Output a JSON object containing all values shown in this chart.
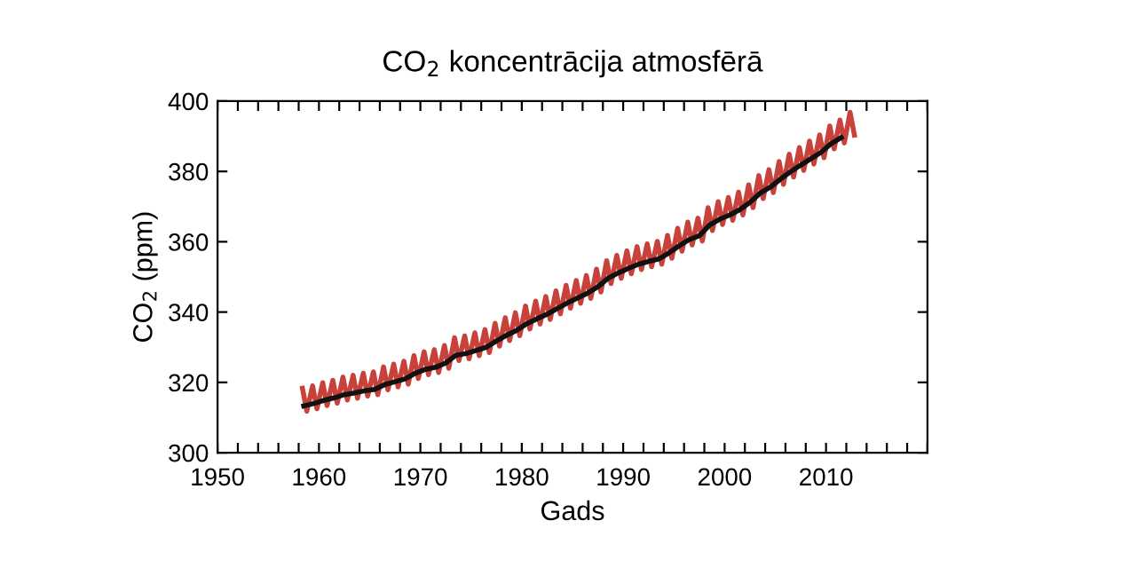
{
  "chart_data": {
    "type": "line",
    "title": "CO$_{2}$ koncentrācija atmosfērā",
    "xlabel": "Gads",
    "ylabel": "CO$_{2}$ (ppm)",
    "xlim": [
      1950,
      2020
    ],
    "ylim": [
      300,
      400
    ],
    "xticks": [
      1950,
      {
        "value": 1952,
        "label": null
      },
      {
        "value": 1954,
        "label": null
      },
      {
        "value": 1956,
        "label": null
      },
      {
        "value": 1958,
        "label": null
      },
      1960,
      {
        "value": 1962,
        "label": null
      },
      {
        "value": 1964,
        "label": null
      },
      {
        "value": 1966,
        "label": null
      },
      {
        "value": 1968,
        "label": null
      },
      1970,
      {
        "value": 1972,
        "label": null
      },
      {
        "value": 1974,
        "label": null
      },
      {
        "value": 1976,
        "label": null
      },
      {
        "value": 1978,
        "label": null
      },
      1980,
      {
        "value": 1982,
        "label": null
      },
      {
        "value": 1984,
        "label": null
      },
      {
        "value": 1986,
        "label": null
      },
      {
        "value": 1988,
        "label": null
      },
      1990,
      {
        "value": 1992,
        "label": null
      },
      {
        "value": 1994,
        "label": null
      },
      {
        "value": 1996,
        "label": null
      },
      {
        "value": 1998,
        "label": null
      },
      2000,
      {
        "value": 2002,
        "label": null
      },
      {
        "value": 2004,
        "label": null
      },
      {
        "value": 2006,
        "label": null
      },
      {
        "value": 2008,
        "label": null
      },
      2010,
      {
        "value": 2012,
        "label": null
      },
      {
        "value": 2014,
        "label": null
      },
      {
        "value": 2016,
        "label": null
      },
      {
        "value": 2018,
        "label": null
      },
      {
        "value": 2020,
        "label": null
      }
    ],
    "yticks": [
      300,
      320,
      340,
      360,
      380,
      400
    ],
    "grid": false,
    "marker": "none",
    "line_style": "solid",
    "series": [
      {
        "color": "#c8413a",
        "x": [
          1958.37,
          1958.8,
          1959.37,
          1959.8,
          1960.37,
          1960.8,
          1961.37,
          1961.8,
          1962.37,
          1962.8,
          1963.37,
          1963.8,
          1964.37,
          1964.8,
          1965.37,
          1965.8,
          1966.37,
          1966.8,
          1967.37,
          1967.8,
          1968.37,
          1968.8,
          1969.37,
          1969.8,
          1970.37,
          1970.8,
          1971.37,
          1971.8,
          1972.37,
          1972.8,
          1973.37,
          1973.8,
          1974.37,
          1974.8,
          1975.37,
          1975.8,
          1976.37,
          1976.8,
          1977.37,
          1977.8,
          1978.37,
          1978.8,
          1979.37,
          1979.8,
          1980.37,
          1980.8,
          1981.37,
          1981.8,
          1982.37,
          1982.8,
          1983.37,
          1983.8,
          1984.37,
          1984.8,
          1985.37,
          1985.8,
          1986.37,
          1986.8,
          1987.37,
          1987.8,
          1988.37,
          1988.8,
          1989.37,
          1989.8,
          1990.37,
          1990.8,
          1991.37,
          1991.8,
          1992.37,
          1992.8,
          1993.37,
          1993.8,
          1994.37,
          1994.8,
          1995.37,
          1995.8,
          1996.37,
          1996.8,
          1997.37,
          1997.8,
          1998.37,
          1998.8,
          1999.37,
          1999.8,
          2000.37,
          2000.8,
          2001.37,
          2001.8,
          2002.37,
          2002.8,
          2003.37,
          2003.8,
          2004.37,
          2004.8,
          2005.37,
          2005.8,
          2006.37,
          2006.8,
          2007.37,
          2007.8,
          2008.37,
          2008.8,
          2009.37,
          2009.8,
          2010.37,
          2010.8,
          2011.37,
          2011.8,
          2012.37,
          2012.8
        ],
        "values": [
          318.3,
          311.8,
          319.0,
          312.5,
          319.9,
          313.4,
          320.6,
          314.1,
          321.5,
          315.0,
          322.0,
          315.5,
          322.6,
          316.1,
          323.0,
          316.5,
          324.4,
          317.9,
          325.2,
          318.7,
          326.0,
          319.5,
          327.6,
          321.1,
          328.7,
          322.2,
          329.3,
          322.8,
          330.5,
          324.0,
          332.7,
          326.2,
          333.2,
          326.7,
          334.1,
          327.6,
          335.0,
          328.5,
          336.8,
          330.3,
          338.4,
          331.9,
          339.8,
          333.3,
          341.7,
          335.2,
          343.1,
          336.6,
          344.4,
          337.9,
          346.0,
          339.5,
          347.6,
          341.1,
          349.0,
          342.5,
          350.4,
          343.9,
          352.2,
          345.7,
          354.6,
          348.1,
          356.1,
          349.6,
          357.4,
          350.9,
          358.6,
          352.1,
          359.4,
          352.9,
          360.1,
          353.6,
          361.8,
          355.3,
          363.8,
          357.3,
          365.6,
          359.1,
          366.7,
          360.2,
          369.7,
          363.2,
          371.4,
          364.9,
          372.6,
          366.1,
          374.1,
          367.6,
          376.2,
          369.7,
          378.8,
          372.3,
          380.5,
          374.0,
          382.8,
          376.3,
          384.9,
          378.4,
          386.8,
          380.3,
          388.6,
          382.1,
          390.4,
          383.9,
          392.9,
          386.4,
          394.6,
          388.1,
          396.8,
          390.3
        ]
      },
      {
        "color": "#111111",
        "x": [
          1958.5,
          1959.5,
          1960.5,
          1961.5,
          1962.5,
          1963.5,
          1964.5,
          1965.5,
          1966.5,
          1967.5,
          1968.5,
          1969.5,
          1970.5,
          1971.5,
          1972.5,
          1973.5,
          1974.5,
          1975.5,
          1976.5,
          1977.5,
          1978.5,
          1979.5,
          1980.5,
          1981.5,
          1982.5,
          1983.5,
          1984.5,
          1985.5,
          1986.5,
          1987.5,
          1988.5,
          1989.5,
          1990.5,
          1991.5,
          1992.5,
          1993.5,
          1994.5,
          1995.5,
          1996.5,
          1997.5,
          1998.5,
          1999.5,
          2000.5,
          2001.5,
          2002.5,
          2003.5,
          2004.5,
          2005.5,
          2006.5,
          2007.5,
          2008.5,
          2009.5,
          2010.5,
          2011.5
        ],
        "values": [
          313.3,
          314.0,
          314.9,
          315.6,
          316.5,
          317.0,
          317.6,
          318.0,
          319.4,
          320.2,
          321.0,
          322.6,
          323.7,
          324.3,
          325.5,
          327.7,
          328.2,
          329.1,
          330.0,
          331.8,
          333.4,
          334.8,
          336.7,
          338.1,
          339.4,
          341.0,
          342.6,
          344.0,
          345.4,
          347.2,
          349.6,
          351.1,
          352.4,
          353.6,
          354.4,
          355.1,
          356.8,
          358.8,
          360.6,
          361.7,
          364.7,
          366.4,
          367.6,
          369.1,
          371.2,
          373.8,
          375.5,
          377.8,
          379.9,
          381.8,
          383.6,
          385.4,
          387.9,
          389.6
        ]
      }
    ]
  }
}
